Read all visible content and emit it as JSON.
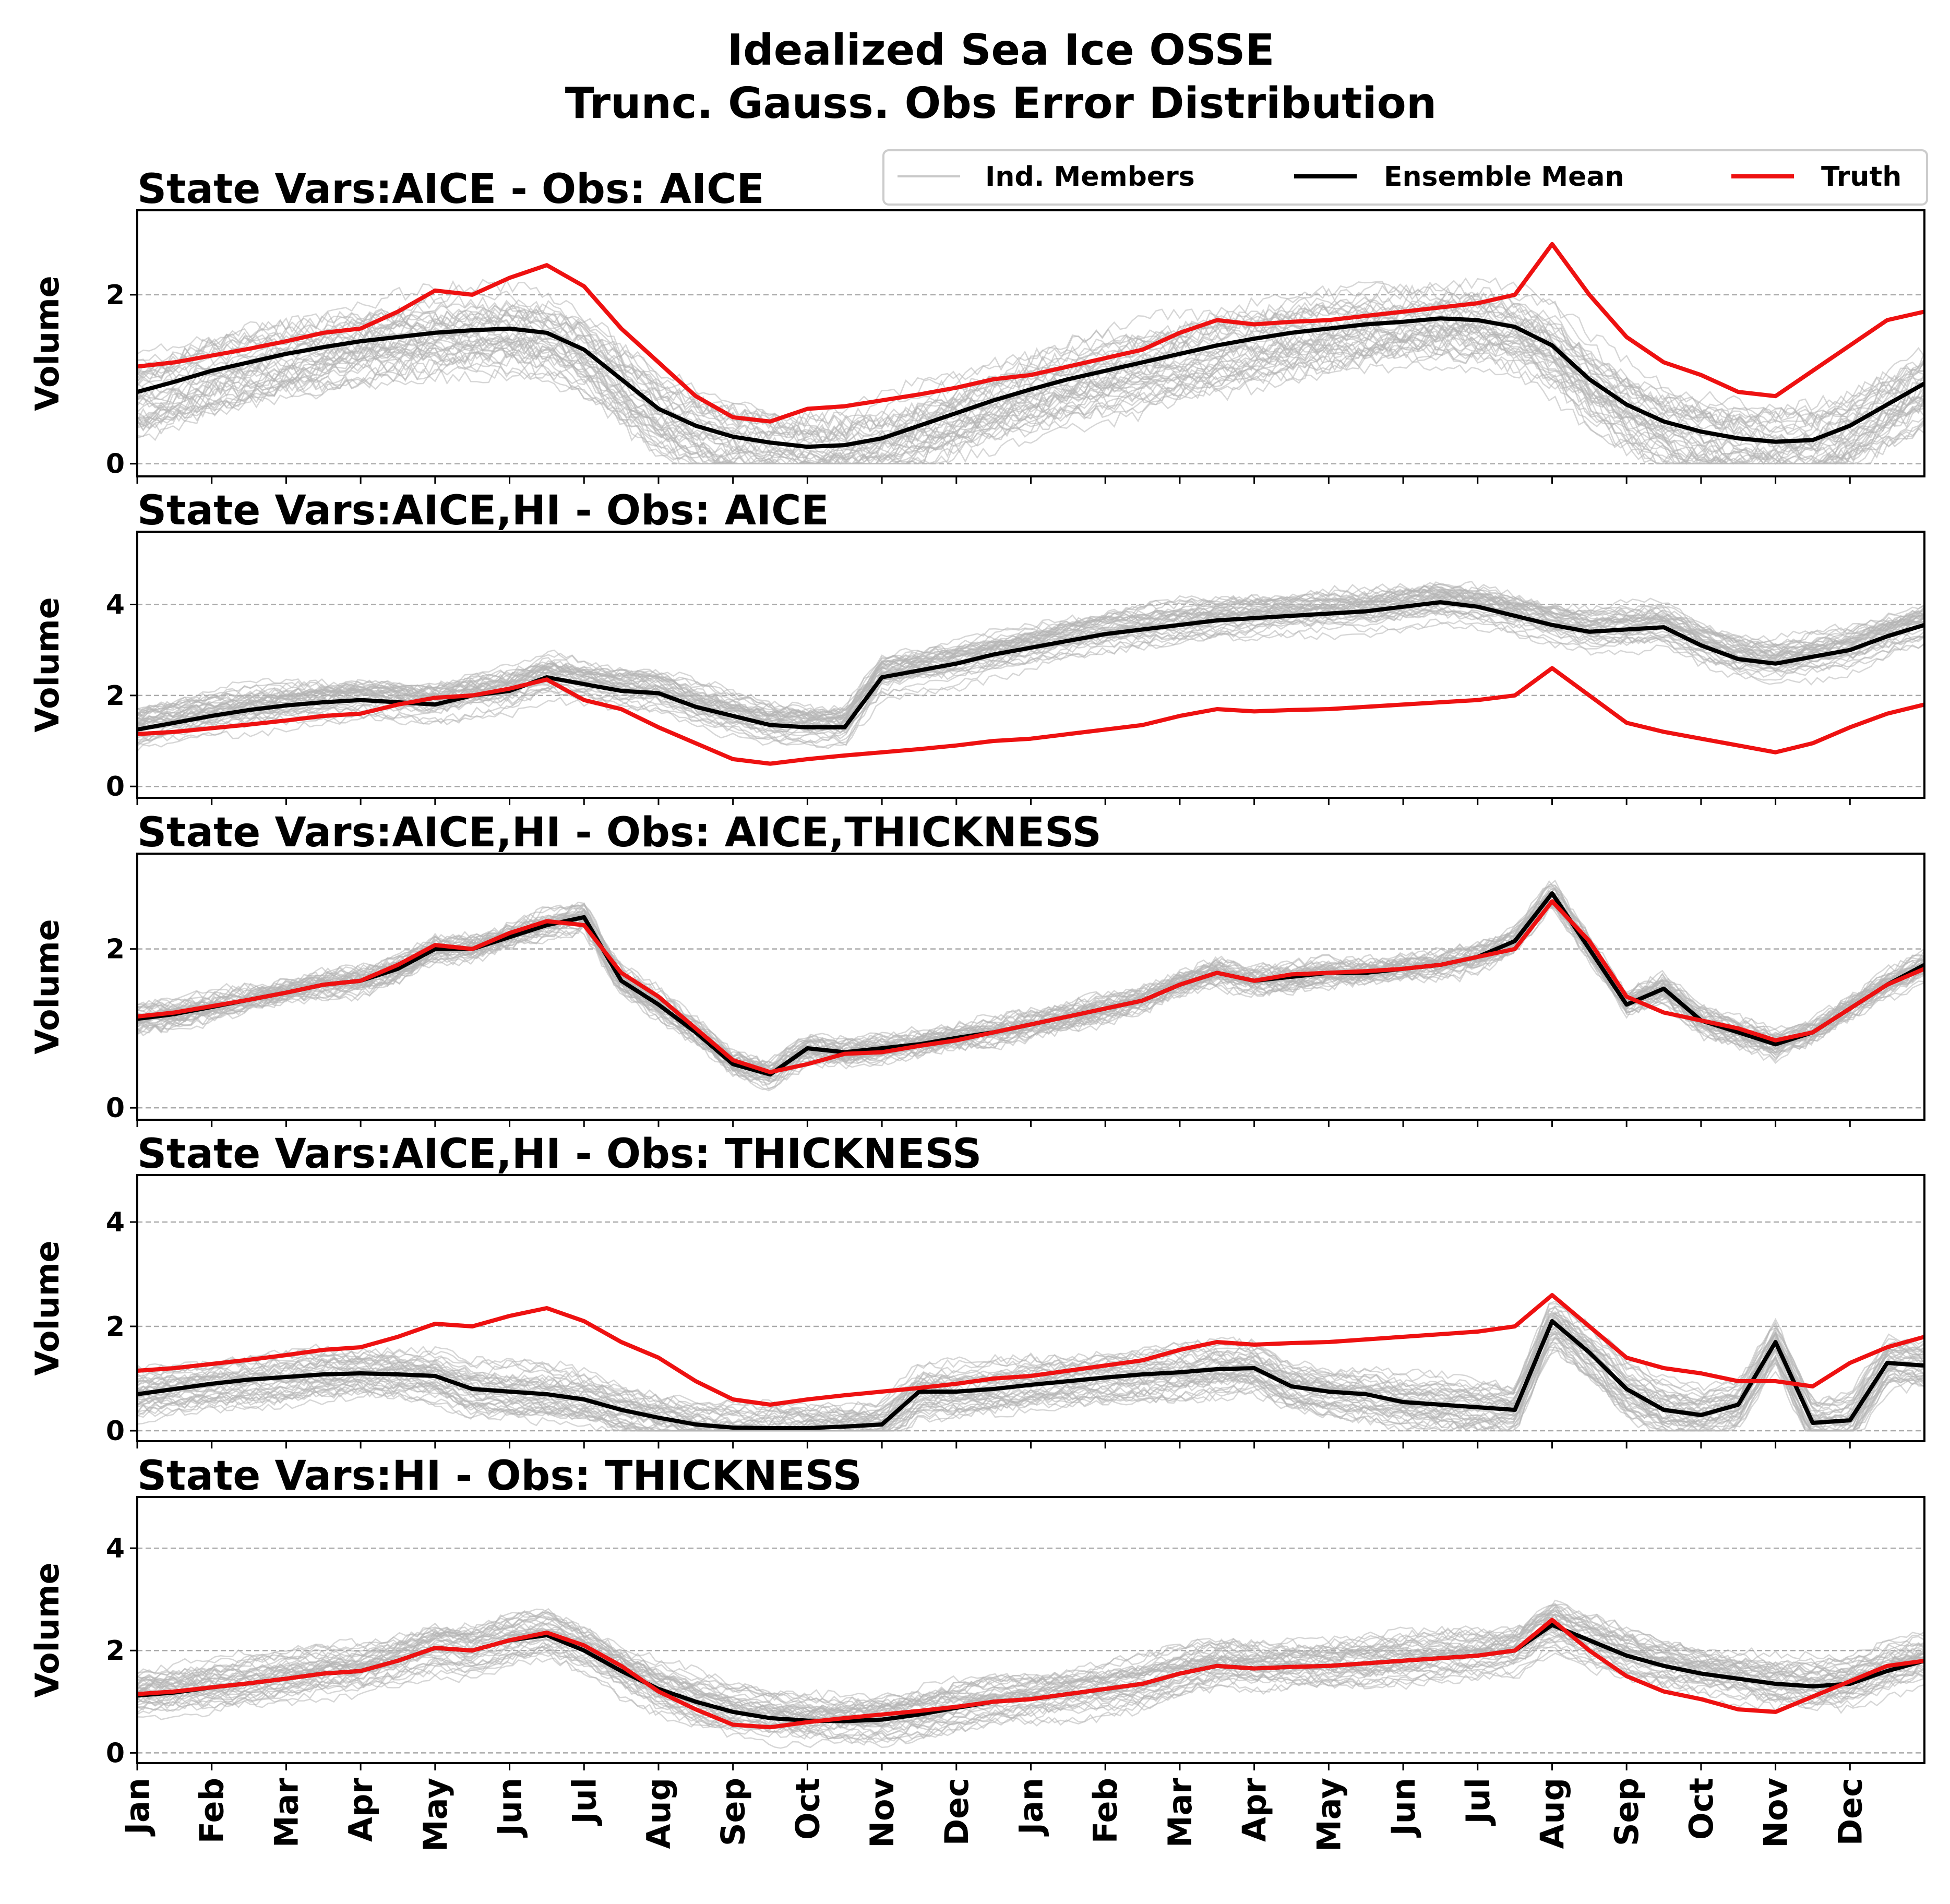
{
  "figure": {
    "title_lines": [
      "Idealized Sea Ice OSSE",
      "Trunc. Gauss. Obs Error Distribution"
    ]
  },
  "legend": {
    "placement": "top-right",
    "entries": [
      {
        "label": "Ind. Members",
        "color": "#c8c8c8"
      },
      {
        "label": "Ensemble Mean",
        "color": "#000000"
      },
      {
        "label": "Truth",
        "color": "#ee1111"
      }
    ]
  },
  "chart_data": [
    {
      "type": "line",
      "title": "State Vars:AICE - Obs: AICE",
      "xlabel": "",
      "ylabel": "Volume",
      "xlim": [
        0,
        24
      ],
      "ylim": [
        -0.15,
        3.0
      ],
      "yticks": [
        0,
        2
      ],
      "x": [
        0,
        0.5,
        1,
        1.5,
        2,
        2.5,
        3,
        3.5,
        4,
        4.5,
        5,
        5.5,
        6,
        6.5,
        7,
        7.5,
        8,
        8.5,
        9,
        9.5,
        10,
        10.5,
        11,
        11.5,
        12,
        12.5,
        13,
        13.5,
        14,
        14.5,
        15,
        15.5,
        16,
        16.5,
        17,
        17.5,
        18,
        18.5,
        19,
        19.5,
        20,
        20.5,
        21,
        21.5,
        22,
        22.5,
        23,
        23.5,
        24
      ],
      "series": [
        {
          "role": "truth",
          "values": [
            1.15,
            1.2,
            1.28,
            1.36,
            1.45,
            1.55,
            1.6,
            1.8,
            2.05,
            2.0,
            2.2,
            2.35,
            2.1,
            1.6,
            1.2,
            0.8,
            0.55,
            0.5,
            0.65,
            0.68,
            0.75,
            0.82,
            0.9,
            1.0,
            1.05,
            1.15,
            1.25,
            1.35,
            1.55,
            1.7,
            1.65,
            1.68,
            1.7,
            1.75,
            1.8,
            1.85,
            1.9,
            2.0,
            2.6,
            2.0,
            1.5,
            1.2,
            1.05,
            0.85,
            0.8,
            1.1,
            1.4,
            1.7,
            1.8
          ]
        },
        {
          "role": "mean",
          "values": [
            0.85,
            0.97,
            1.1,
            1.2,
            1.3,
            1.38,
            1.45,
            1.5,
            1.55,
            1.58,
            1.6,
            1.55,
            1.35,
            1.0,
            0.65,
            0.45,
            0.32,
            0.25,
            0.2,
            0.22,
            0.3,
            0.45,
            0.6,
            0.75,
            0.88,
            1.0,
            1.1,
            1.2,
            1.3,
            1.4,
            1.48,
            1.55,
            1.6,
            1.65,
            1.68,
            1.72,
            1.7,
            1.62,
            1.4,
            1.0,
            0.7,
            0.5,
            0.38,
            0.3,
            0.26,
            0.28,
            0.45,
            0.7,
            0.95
          ]
        }
      ]
    },
    {
      "type": "line",
      "title": "State Vars:AICE,HI - Obs: AICE",
      "xlabel": "",
      "ylabel": "Volume",
      "xlim": [
        0,
        24
      ],
      "ylim": [
        -0.25,
        5.6
      ],
      "yticks": [
        0,
        2,
        4
      ],
      "x": [
        0,
        0.5,
        1,
        1.5,
        2,
        2.5,
        3,
        3.5,
        4,
        4.5,
        5,
        5.5,
        6,
        6.5,
        7,
        7.5,
        8,
        8.5,
        9,
        9.5,
        10,
        10.5,
        11,
        11.5,
        12,
        12.5,
        13,
        13.5,
        14,
        14.5,
        15,
        15.5,
        16,
        16.5,
        17,
        17.5,
        18,
        18.5,
        19,
        19.5,
        20,
        20.5,
        21,
        21.5,
        22,
        22.5,
        23,
        23.5,
        24
      ],
      "series": [
        {
          "role": "truth",
          "values": [
            1.15,
            1.2,
            1.28,
            1.36,
            1.45,
            1.55,
            1.6,
            1.8,
            1.95,
            2.0,
            2.15,
            2.35,
            1.9,
            1.7,
            1.3,
            0.95,
            0.6,
            0.5,
            0.6,
            0.68,
            0.75,
            0.82,
            0.9,
            1.0,
            1.05,
            1.15,
            1.25,
            1.35,
            1.55,
            1.7,
            1.65,
            1.68,
            1.7,
            1.75,
            1.8,
            1.85,
            1.9,
            2.0,
            2.6,
            2.0,
            1.4,
            1.2,
            1.05,
            0.9,
            0.75,
            0.95,
            1.3,
            1.6,
            1.8
          ]
        },
        {
          "role": "mean",
          "values": [
            1.25,
            1.4,
            1.55,
            1.68,
            1.78,
            1.85,
            1.9,
            1.85,
            1.8,
            2.0,
            2.1,
            2.4,
            2.25,
            2.1,
            2.05,
            1.75,
            1.55,
            1.35,
            1.3,
            1.3,
            2.4,
            2.55,
            2.7,
            2.9,
            3.05,
            3.2,
            3.35,
            3.45,
            3.55,
            3.65,
            3.7,
            3.75,
            3.8,
            3.85,
            3.95,
            4.05,
            3.95,
            3.75,
            3.55,
            3.4,
            3.45,
            3.5,
            3.1,
            2.8,
            2.7,
            2.85,
            3.0,
            3.3,
            3.55
          ]
        }
      ]
    },
    {
      "type": "line",
      "title": "State Vars:AICE,HI - Obs: AICE,THICKNESS",
      "xlabel": "",
      "ylabel": "Volume",
      "xlim": [
        0,
        24
      ],
      "ylim": [
        -0.15,
        3.2
      ],
      "yticks": [
        0,
        2
      ],
      "x": [
        0,
        0.5,
        1,
        1.5,
        2,
        2.5,
        3,
        3.5,
        4,
        4.5,
        5,
        5.5,
        6,
        6.5,
        7,
        7.5,
        8,
        8.5,
        9,
        9.5,
        10,
        10.5,
        11,
        11.5,
        12,
        12.5,
        13,
        13.5,
        14,
        14.5,
        15,
        15.5,
        16,
        16.5,
        17,
        17.5,
        18,
        18.5,
        19,
        19.5,
        20,
        20.5,
        21,
        21.5,
        22,
        22.5,
        23,
        23.5,
        24
      ],
      "series": [
        {
          "role": "truth",
          "values": [
            1.15,
            1.2,
            1.28,
            1.36,
            1.45,
            1.55,
            1.6,
            1.8,
            2.05,
            2.0,
            2.2,
            2.35,
            2.3,
            1.7,
            1.4,
            1.0,
            0.6,
            0.45,
            0.55,
            0.68,
            0.7,
            0.78,
            0.85,
            0.95,
            1.05,
            1.15,
            1.25,
            1.35,
            1.55,
            1.7,
            1.6,
            1.68,
            1.7,
            1.72,
            1.75,
            1.8,
            1.9,
            2.0,
            2.6,
            2.1,
            1.4,
            1.2,
            1.1,
            1.0,
            0.85,
            0.95,
            1.25,
            1.55,
            1.75
          ]
        },
        {
          "role": "mean",
          "values": [
            1.12,
            1.18,
            1.27,
            1.36,
            1.45,
            1.55,
            1.6,
            1.75,
            2.0,
            2.0,
            2.15,
            2.3,
            2.4,
            1.6,
            1.3,
            0.95,
            0.55,
            0.42,
            0.75,
            0.7,
            0.75,
            0.8,
            0.88,
            0.95,
            1.05,
            1.15,
            1.25,
            1.35,
            1.55,
            1.7,
            1.6,
            1.65,
            1.7,
            1.7,
            1.75,
            1.8,
            1.9,
            2.1,
            2.7,
            2.0,
            1.3,
            1.5,
            1.1,
            0.95,
            0.8,
            0.95,
            1.25,
            1.55,
            1.8
          ]
        }
      ]
    },
    {
      "type": "line",
      "title": "State Vars:AICE,HI - Obs: THICKNESS",
      "xlabel": "",
      "ylabel": "Volume",
      "xlim": [
        0,
        24
      ],
      "ylim": [
        -0.2,
        4.9
      ],
      "yticks": [
        0,
        2,
        4
      ],
      "x": [
        0,
        0.5,
        1,
        1.5,
        2,
        2.5,
        3,
        3.5,
        4,
        4.5,
        5,
        5.5,
        6,
        6.5,
        7,
        7.5,
        8,
        8.5,
        9,
        9.5,
        10,
        10.5,
        11,
        11.5,
        12,
        12.5,
        13,
        13.5,
        14,
        14.5,
        15,
        15.5,
        16,
        16.5,
        17,
        17.5,
        18,
        18.5,
        19,
        19.5,
        20,
        20.5,
        21,
        21.5,
        22,
        22.5,
        23,
        23.5,
        24
      ],
      "series": [
        {
          "role": "truth",
          "values": [
            1.15,
            1.2,
            1.28,
            1.36,
            1.45,
            1.55,
            1.6,
            1.8,
            2.05,
            2.0,
            2.2,
            2.35,
            2.1,
            1.7,
            1.4,
            0.95,
            0.6,
            0.5,
            0.6,
            0.68,
            0.75,
            0.82,
            0.9,
            1.0,
            1.05,
            1.15,
            1.25,
            1.35,
            1.55,
            1.7,
            1.65,
            1.68,
            1.7,
            1.75,
            1.8,
            1.85,
            1.9,
            2.0,
            2.6,
            2.0,
            1.4,
            1.2,
            1.1,
            0.95,
            0.95,
            0.85,
            1.3,
            1.6,
            1.8
          ]
        },
        {
          "role": "mean",
          "values": [
            0.7,
            0.8,
            0.9,
            0.98,
            1.03,
            1.08,
            1.1,
            1.08,
            1.05,
            0.8,
            0.75,
            0.7,
            0.6,
            0.4,
            0.25,
            0.12,
            0.06,
            0.05,
            0.05,
            0.08,
            0.12,
            0.75,
            0.75,
            0.8,
            0.88,
            0.95,
            1.02,
            1.08,
            1.12,
            1.18,
            1.2,
            0.85,
            0.75,
            0.7,
            0.55,
            0.5,
            0.45,
            0.4,
            2.1,
            1.5,
            0.8,
            0.4,
            0.3,
            0.5,
            1.7,
            0.15,
            0.2,
            1.3,
            1.25
          ]
        }
      ]
    },
    {
      "type": "line",
      "title": "State Vars:HI - Obs: THICKNESS",
      "xlabel": "",
      "ylabel": "Volume",
      "xlim": [
        0,
        24
      ],
      "ylim": [
        -0.2,
        5.0
      ],
      "yticks": [
        0,
        2,
        4
      ],
      "x": [
        0,
        0.5,
        1,
        1.5,
        2,
        2.5,
        3,
        3.5,
        4,
        4.5,
        5,
        5.5,
        6,
        6.5,
        7,
        7.5,
        8,
        8.5,
        9,
        9.5,
        10,
        10.5,
        11,
        11.5,
        12,
        12.5,
        13,
        13.5,
        14,
        14.5,
        15,
        15.5,
        16,
        16.5,
        17,
        17.5,
        18,
        18.5,
        19,
        19.5,
        20,
        20.5,
        21,
        21.5,
        22,
        22.5,
        23,
        23.5,
        24
      ],
      "series": [
        {
          "role": "truth",
          "values": [
            1.15,
            1.2,
            1.28,
            1.36,
            1.45,
            1.55,
            1.6,
            1.8,
            2.05,
            2.0,
            2.2,
            2.35,
            2.1,
            1.7,
            1.2,
            0.85,
            0.55,
            0.5,
            0.6,
            0.68,
            0.75,
            0.82,
            0.9,
            1.0,
            1.05,
            1.15,
            1.25,
            1.35,
            1.55,
            1.7,
            1.65,
            1.68,
            1.7,
            1.75,
            1.8,
            1.85,
            1.9,
            2.0,
            2.6,
            2.0,
            1.5,
            1.2,
            1.05,
            0.85,
            0.8,
            1.1,
            1.4,
            1.7,
            1.8
          ]
        },
        {
          "role": "mean",
          "values": [
            1.12,
            1.18,
            1.28,
            1.36,
            1.45,
            1.55,
            1.6,
            1.8,
            2.05,
            2.0,
            2.2,
            2.3,
            2.0,
            1.6,
            1.25,
            1.0,
            0.8,
            0.68,
            0.63,
            0.62,
            0.65,
            0.75,
            0.88,
            1.0,
            1.05,
            1.15,
            1.25,
            1.35,
            1.55,
            1.7,
            1.65,
            1.68,
            1.7,
            1.75,
            1.8,
            1.85,
            1.9,
            2.0,
            2.5,
            2.2,
            1.9,
            1.7,
            1.55,
            1.45,
            1.35,
            1.3,
            1.35,
            1.6,
            1.8
          ]
        }
      ]
    }
  ],
  "x_axis": {
    "tick_labels": [
      "Jan",
      "Feb",
      "Mar",
      "Apr",
      "May",
      "Jun",
      "Jul",
      "Aug",
      "Sep",
      "Oct",
      "Nov",
      "Dec",
      "Jan",
      "Feb",
      "Mar",
      "Apr",
      "May",
      "Jun",
      "Jul",
      "Aug",
      "Sep",
      "Oct",
      "Nov",
      "Dec"
    ],
    "tick_positions": [
      0,
      1,
      2,
      3,
      4,
      5,
      6,
      7,
      8,
      9,
      10,
      11,
      12,
      13,
      14,
      15,
      16,
      17,
      18,
      19,
      20,
      21,
      22,
      23
    ]
  },
  "ensemble": {
    "members": 40,
    "color": "#b4b4b4"
  },
  "colors": {
    "truth": "#ee1111",
    "mean": "#000000",
    "members": "#b4b4b4",
    "grid": "#aaaaaa"
  }
}
